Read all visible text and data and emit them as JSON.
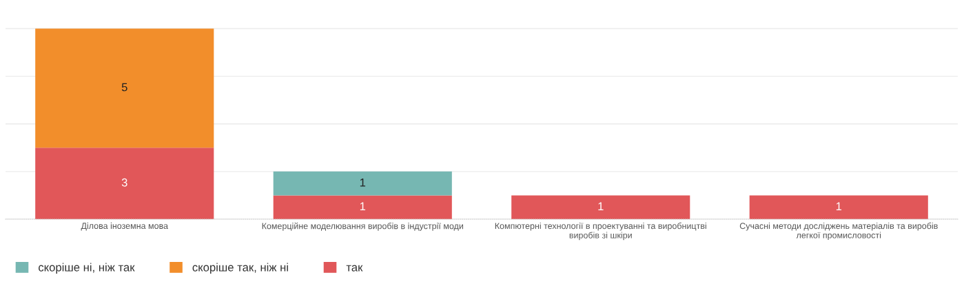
{
  "chart_data": {
    "type": "bar",
    "stacked": true,
    "data_labels": true,
    "grid": "y",
    "legend": "bottom left",
    "categories": [
      "Ділова іноземна мова",
      "Комерційне моделювання виробів в індустрії моди",
      "Компютерні технології в проектуванні та виробництві\nвиробів зі шкіри",
      "Сучасні методи досліджень матеріалів та виробів\nлегкої промисловості"
    ],
    "yticks": [
      {
        "value": 0,
        "label": null
      },
      {
        "value": 2,
        "label": null
      },
      {
        "value": 4,
        "label": null
      },
      {
        "value": 6,
        "label": null
      },
      {
        "value": 8,
        "label": null
      }
    ],
    "tick_labels": "x",
    "series": [
      {
        "name": "так",
        "color": "#e15759",
        "values": [
          3,
          1,
          1,
          1
        ]
      },
      {
        "name": "скоріше так, ніж ні",
        "color": "#f28e2b",
        "values": [
          5,
          null,
          null,
          null
        ]
      },
      {
        "name": "скоріше ні, ніж так",
        "color": "#76b7b2",
        "values": [
          null,
          1,
          null,
          null
        ]
      }
    ]
  }
}
